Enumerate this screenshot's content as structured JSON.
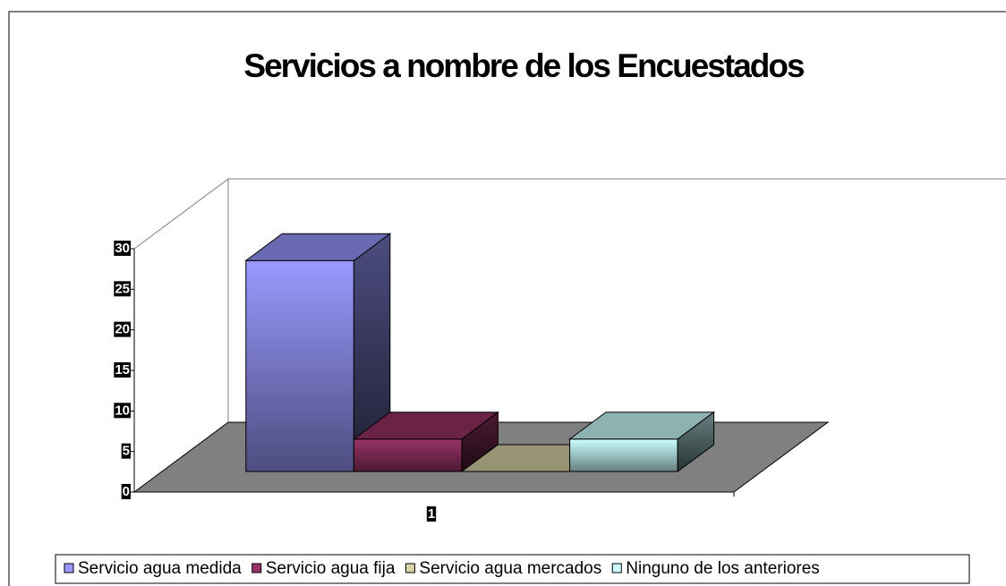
{
  "chart_data": {
    "type": "bar3d",
    "title": "Servicios a nombre de los Encuestados",
    "categories": [
      "1"
    ],
    "series": [
      {
        "name": "Servicio agua medida",
        "color": "#9999ff",
        "values": [
          26
        ]
      },
      {
        "name": "Servicio agua fija",
        "color": "#993366",
        "values": [
          4
        ]
      },
      {
        "name": "Servicio agua mercados",
        "color": "#d8d3a8",
        "values": [
          0
        ]
      },
      {
        "name": "Ninguno de los anteriores",
        "color": "#ccffff",
        "values": [
          4
        ]
      }
    ],
    "ylim": [
      0,
      30
    ],
    "yticks": [
      0,
      5,
      10,
      15,
      20,
      25,
      30
    ],
    "legend": "bottom"
  }
}
